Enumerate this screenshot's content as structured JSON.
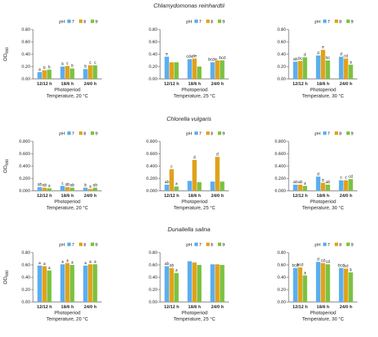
{
  "species_titles": [
    "Chlamydomonas reinhardtii",
    "Chlorella vulgaris",
    "Dunaliella salina"
  ],
  "colors": {
    "pH7": "#5aaef0",
    "pH8": "#e0a21a",
    "pH9": "#7cc241",
    "letter": "#333333"
  },
  "chart_data": [
    {
      "type": "bar",
      "panel_group": "Chlamydomonas reinhardtii",
      "column": "Temperature, 20 °C",
      "categories": [
        "12/12 h",
        "18/6 h",
        "24/0 h"
      ],
      "series": [
        {
          "name": "7",
          "values": [
            0.11,
            0.2,
            0.16
          ],
          "letters": [
            "a",
            "b",
            "b"
          ]
        },
        {
          "name": "8",
          "values": [
            0.14,
            0.21,
            0.22
          ],
          "letters": [
            "b",
            "c",
            "c"
          ]
        },
        {
          "name": "9",
          "values": [
            0.15,
            0.17,
            0.22
          ],
          "letters": [
            "b",
            "b",
            "c"
          ]
        }
      ],
      "xlabel": "Photoperiod",
      "subtitle": "Temperature, 20 °C",
      "ylabel": "OD680",
      "ylim": [
        0,
        0.8
      ],
      "yticks": [
        "0.00",
        "0.20",
        "0.40",
        "0.60",
        "0.80"
      ],
      "legend": {
        "title": "pH",
        "position": "top-right"
      }
    },
    {
      "type": "bar",
      "panel_group": "Chlamydomonas reinhardtii",
      "column": "Temperature, 25 °C",
      "categories": [
        "12/12 h",
        "18/6 h",
        "24/0 h"
      ],
      "series": [
        {
          "name": "7",
          "values": [
            0.36,
            0.32,
            0.27
          ],
          "letters": [
            "e",
            "cde",
            "bcde"
          ]
        },
        {
          "name": "8",
          "values": [
            0.27,
            0.33,
            0.3
          ],
          "letters": [
            "",
            "de",
            ""
          ]
        },
        {
          "name": "9",
          "values": [
            0.27,
            0.2,
            0.3
          ],
          "letters": [
            "",
            "",
            "bcd"
          ]
        }
      ],
      "xlabel": "Photoperiod",
      "subtitle": "Temperature, 25 °C",
      "ylabel": "",
      "ylim": [
        0,
        0.8
      ],
      "yticks": [
        "0.00",
        "0.20",
        "0.40",
        "0.60",
        "0.80"
      ],
      "legend": {
        "title": "pH",
        "position": "top-right"
      }
    },
    {
      "type": "bar",
      "panel_group": "Chlamydomonas reinhardtii",
      "column": "Temperature, 30 °C",
      "categories": [
        "12/12 h",
        "18/6 h",
        "24/0 h"
      ],
      "series": [
        {
          "name": "7",
          "values": [
            0.28,
            0.38,
            0.36
          ],
          "letters": [
            "ab",
            "d",
            "d"
          ]
        },
        {
          "name": "8",
          "values": [
            0.29,
            0.47,
            0.33
          ],
          "letters": [
            "bc",
            "e",
            "cd"
          ]
        },
        {
          "name": "9",
          "values": [
            0.35,
            0.3,
            0.23
          ],
          "letters": [
            "d",
            "bc",
            "a"
          ]
        }
      ],
      "xlabel": "Photoperiod",
      "subtitle": "Temperature, 30 °C",
      "ylabel": "",
      "ylim": [
        0,
        0.8
      ],
      "yticks": [
        "0.00",
        "0.20",
        "0.40",
        "0.60",
        "0.80"
      ],
      "legend": {
        "title": "pH",
        "position": "top-right"
      }
    },
    {
      "type": "bar",
      "panel_group": "Chlorella vulgaris",
      "column": "Temperature, 20 °C",
      "categories": [
        "12/12 h",
        "18/6 h",
        "24/0 h"
      ],
      "series": [
        {
          "name": "7",
          "values": [
            0.06,
            0.08,
            0.05
          ],
          "letters": [
            "ab",
            "c",
            "b"
          ]
        },
        {
          "name": "8",
          "values": [
            0.05,
            0.06,
            0.03
          ],
          "letters": [
            "ab",
            "ab",
            "a"
          ]
        },
        {
          "name": "9",
          "values": [
            0.04,
            0.05,
            0.05
          ],
          "letters": [
            "a",
            "ab",
            "ab"
          ]
        }
      ],
      "xlabel": "Photoperiod",
      "subtitle": "Temperature, 20 °C",
      "ylabel": "OD680",
      "ylim": [
        0,
        0.8
      ],
      "yticks": [
        "0.000",
        "0.200",
        "0.400",
        "0.600",
        "0.800"
      ],
      "legend": {
        "title": "pH",
        "position": "top-right"
      }
    },
    {
      "type": "bar",
      "panel_group": "Chlorella vulgaris",
      "column": "Temperature, 25 °C",
      "categories": [
        "12/12 h",
        "18/6 h",
        "24/0 h"
      ],
      "series": [
        {
          "name": "7",
          "values": [
            0.1,
            0.16,
            0.15
          ],
          "letters": [
            "ab",
            "",
            ""
          ]
        },
        {
          "name": "8",
          "values": [
            0.35,
            0.5,
            0.55
          ],
          "letters": [
            "c",
            "d",
            "d"
          ]
        },
        {
          "name": "9",
          "values": [
            0.07,
            0.14,
            0.15
          ],
          "letters": [
            "a",
            "",
            ""
          ]
        }
      ],
      "xlabel": "Photoperiod",
      "subtitle": "Temperature, 25 °C",
      "ylabel": "",
      "ylim": [
        0,
        0.8
      ],
      "yticks": [
        "0.000",
        "0.200",
        "0.400",
        "0.600",
        "0.800"
      ],
      "legend": {
        "title": "pH",
        "position": "top-right"
      }
    },
    {
      "type": "bar",
      "panel_group": "Chlorella vulgaris",
      "column": "Temperature, 30 °C",
      "categories": [
        "12/12 h",
        "18/6 h",
        "24/0 h"
      ],
      "series": [
        {
          "name": "7",
          "values": [
            0.1,
            0.23,
            0.17
          ],
          "letters": [
            "ab",
            "d",
            "c"
          ]
        },
        {
          "name": "8",
          "values": [
            0.1,
            0.13,
            0.17
          ],
          "letters": [
            "ab",
            "b",
            "c"
          ]
        },
        {
          "name": "9",
          "values": [
            0.08,
            0.1,
            0.19
          ],
          "letters": [
            "a",
            "ab",
            "cd"
          ]
        }
      ],
      "xlabel": "Photoperiod",
      "subtitle": "Temperature, 30 °C",
      "ylabel": "",
      "ylim": [
        0,
        0.8
      ],
      "yticks": [
        "0.000",
        "0.200",
        "0.400",
        "0.600",
        "0.800"
      ],
      "legend": {
        "title": "pH",
        "position": "top-right"
      }
    },
    {
      "type": "bar",
      "panel_group": "Dunaliella salina",
      "column": "Temperature, 20 °C",
      "categories": [
        "12/12 h",
        "18/6 h",
        "24/0 h"
      ],
      "series": [
        {
          "name": "7",
          "values": [
            0.59,
            0.61,
            0.59
          ],
          "letters": [
            "a",
            "a",
            "a"
          ]
        },
        {
          "name": "8",
          "values": [
            0.58,
            0.63,
            0.61
          ],
          "letters": [
            "a",
            "a",
            "a"
          ]
        },
        {
          "name": "9",
          "values": [
            0.51,
            0.6,
            0.61
          ],
          "letters": [
            "a",
            "a",
            "a"
          ]
        }
      ],
      "xlabel": "Photoperiod",
      "subtitle": "Temperature, 20 °C",
      "ylabel": "OD680",
      "ylim": [
        0,
        0.8
      ],
      "yticks": [
        "0.00",
        "0.20",
        "0.40",
        "0.60",
        "0.80"
      ],
      "legend": {
        "title": "pH",
        "position": "top-right"
      }
    },
    {
      "type": "bar",
      "panel_group": "Dunaliella salina",
      "column": "Temperature, 25 °C",
      "categories": [
        "12/12 h",
        "18/6 h",
        "24/0 h"
      ],
      "series": [
        {
          "name": "7",
          "values": [
            0.58,
            0.66,
            0.61
          ],
          "letters": [
            "ab",
            "",
            ""
          ]
        },
        {
          "name": "8",
          "values": [
            0.55,
            0.64,
            0.61
          ],
          "letters": [
            "ab",
            "",
            ""
          ]
        },
        {
          "name": "9",
          "values": [
            0.47,
            0.6,
            0.6
          ],
          "letters": [
            "a",
            "",
            ""
          ]
        }
      ],
      "xlabel": "Photoperiod",
      "subtitle": "Temperature, 25 °C",
      "ylabel": "",
      "ylim": [
        0,
        0.8
      ],
      "yticks": [
        "0.00",
        "0.20",
        "0.40",
        "0.60",
        "0.80"
      ],
      "legend": {
        "title": "pH",
        "position": "top-right"
      }
    },
    {
      "type": "bar",
      "panel_group": "Dunaliella salina",
      "column": "Temperature, 30 °C",
      "categories": [
        "12/12 h",
        "18/6 h",
        "24/0 h"
      ],
      "series": [
        {
          "name": "7",
          "values": [
            0.55,
            0.65,
            0.55
          ],
          "letters": [
            "bcd",
            "d",
            "bcd"
          ]
        },
        {
          "name": "8",
          "values": [
            0.56,
            0.63,
            0.54
          ],
          "letters": [
            "bcd",
            "cd",
            "bd"
          ]
        },
        {
          "name": "9",
          "values": [
            0.43,
            0.61,
            0.48
          ],
          "letters": [
            "a",
            "cd",
            "b"
          ]
        }
      ],
      "xlabel": "Photoperiod",
      "subtitle": "Temperature, 30 °C",
      "ylabel": "",
      "ylim": [
        0,
        0.8
      ],
      "yticks": [
        "0.00",
        "0.20",
        "0.40",
        "0.60",
        "0.80"
      ],
      "legend": {
        "title": "pH",
        "position": "top-right"
      }
    }
  ]
}
